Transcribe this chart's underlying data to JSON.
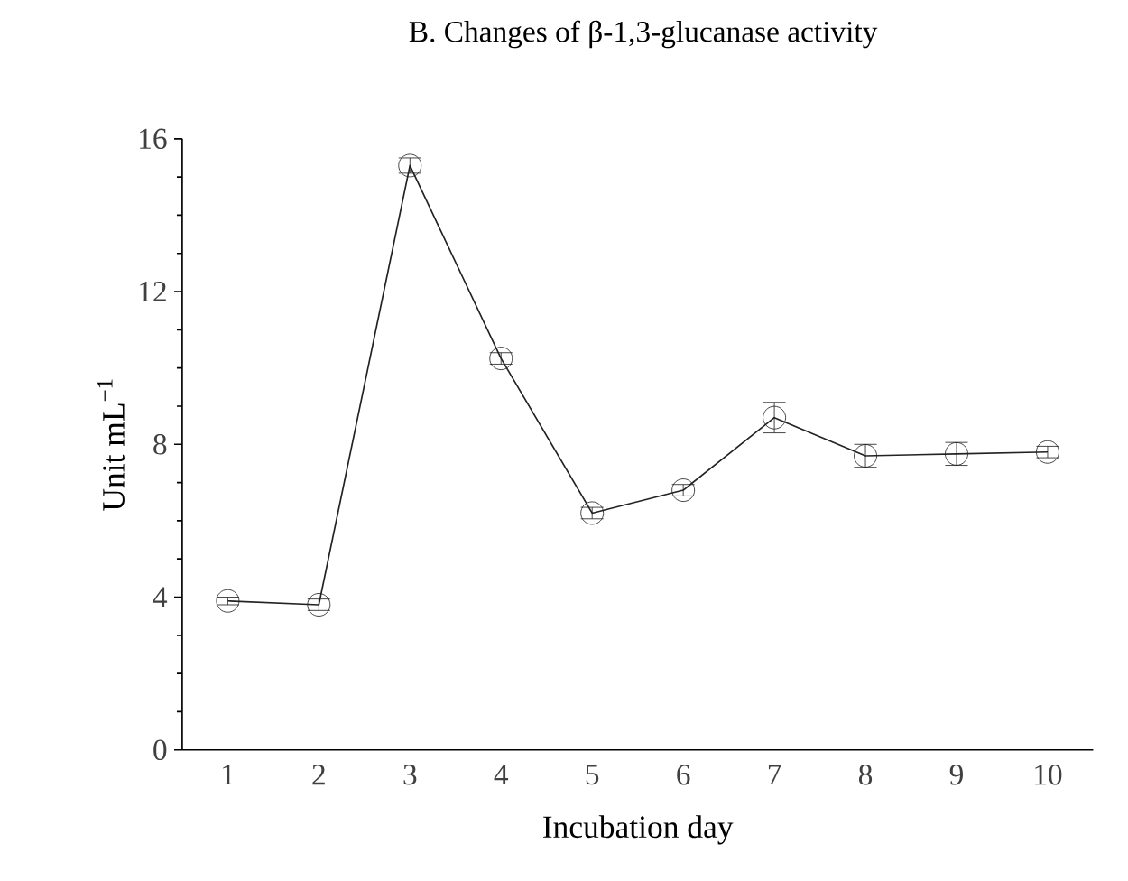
{
  "chart_data": {
    "type": "line",
    "title": "B. Changes of β-1,3-glucanase activity",
    "xlabel": "Incubation day",
    "ylabel": "Unit mL$^{−1}$",
    "categories": [
      "1",
      "2",
      "3",
      "4",
      "5",
      "6",
      "7",
      "8",
      "9",
      "10"
    ],
    "values": [
      3.9,
      3.8,
      15.3,
      10.25,
      6.2,
      6.8,
      8.7,
      7.7,
      7.75,
      7.8
    ],
    "errors": [
      0.1,
      0.15,
      0.2,
      0.15,
      0.15,
      0.15,
      0.4,
      0.3,
      0.3,
      0.15
    ],
    "color": "#222222",
    "marker": "circle",
    "ylim": [
      0,
      16
    ],
    "yticks": [
      0,
      4,
      8,
      12,
      16
    ],
    "grid": false
  }
}
